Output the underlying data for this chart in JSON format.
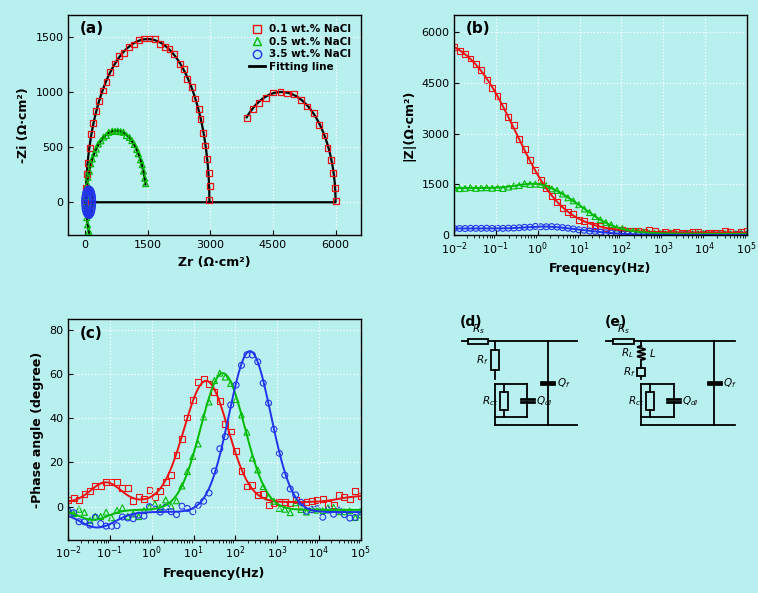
{
  "bg_color": "#b8f0f0",
  "panel_a": {
    "label": "(a)",
    "xlabel": "Zr (Ω·cm²)",
    "ylabel": "-Zi (Ω·cm²)",
    "xlim": [
      -400,
      6600
    ],
    "ylim": [
      -300,
      1700
    ],
    "xticks": [
      0,
      1500,
      3000,
      4500,
      6000
    ],
    "yticks": [
      0,
      500,
      1000,
      1500
    ]
  },
  "panel_b": {
    "label": "(b)",
    "xlabel": "Frequency(Hz)",
    "ylabel": "|Z|(Ω·cm²)",
    "ylim": [
      0,
      6500
    ],
    "yticks": [
      0,
      1500,
      3000,
      4500,
      6000
    ]
  },
  "panel_c": {
    "label": "(c)",
    "xlabel": "Frequency(Hz)",
    "ylabel": "-Phase angle (degree)",
    "ylim": [
      -15,
      85
    ],
    "yticks": [
      0,
      20,
      40,
      60,
      80
    ]
  },
  "legend_labels": [
    "0.1 wt.% NaCl",
    "0.5 wt.% NaCl",
    "3.5 wt.% NaCl",
    "Fitting line"
  ],
  "colors": {
    "red": "#ee1111",
    "green": "#00bb00",
    "blue": "#2233ee",
    "black": "#000000"
  }
}
